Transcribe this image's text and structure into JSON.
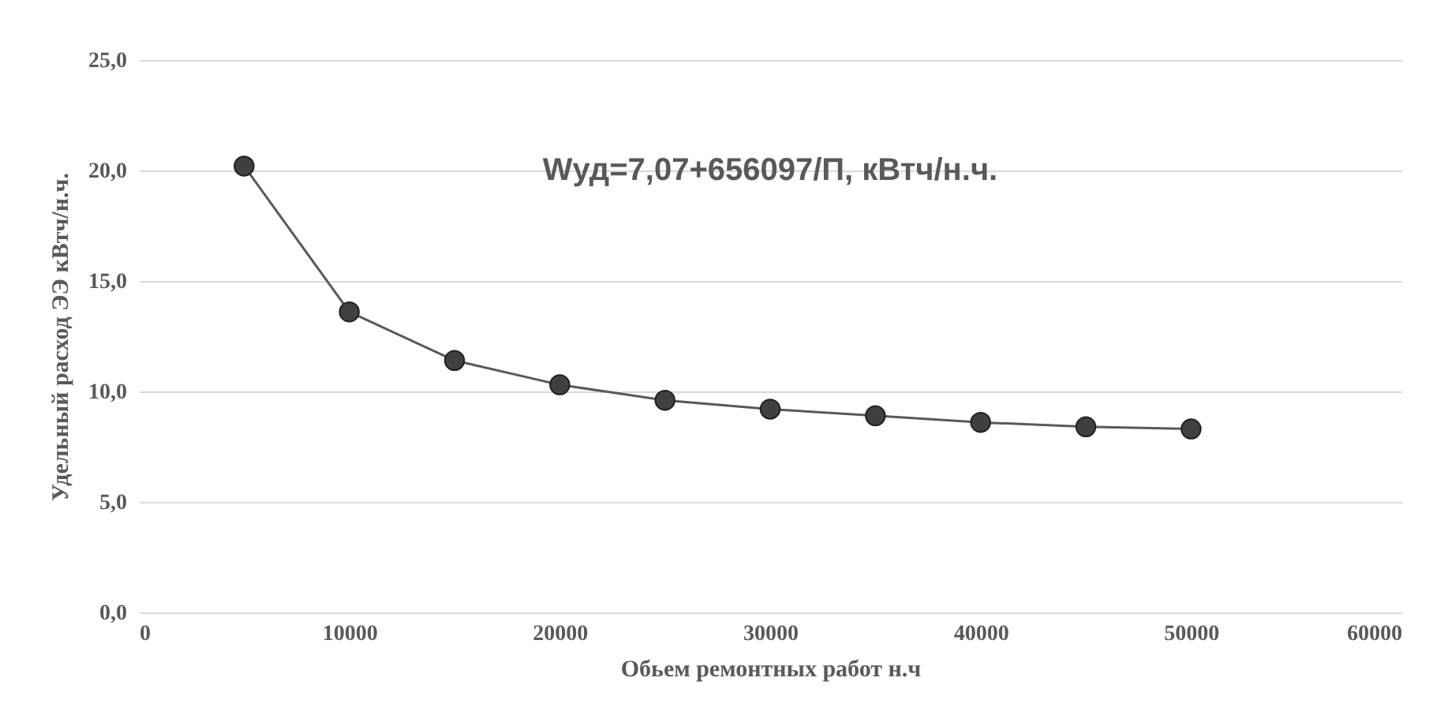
{
  "chart_data": {
    "type": "line",
    "xlabel": "Обьем ремонтных работ н.ч",
    "ylabel": "Удельный расход ЭЭ кВтч/н.ч.",
    "annotations": [
      "Wуд=7,07+656097/П, кВтч/н.ч."
    ],
    "x": [
      5000,
      10000,
      15000,
      20000,
      25000,
      30000,
      35000,
      40000,
      45000,
      50000
    ],
    "series": [
      {
        "color": "#404040",
        "values": [
          20.2,
          13.6,
          11.4,
          10.3,
          9.6,
          9.2,
          8.9,
          8.6,
          8.4,
          8.3
        ]
      }
    ],
    "xlim": [
      0,
      60000
    ],
    "xticks": [
      0,
      10000,
      20000,
      30000,
      40000,
      50000,
      60000
    ],
    "ylim": [
      0,
      25
    ],
    "yticks": [
      {
        "value": 0,
        "label": "0,0"
      },
      {
        "value": 5,
        "label": "5,0"
      },
      {
        "value": 10,
        "label": "10,0"
      },
      {
        "value": 15,
        "label": "15,0"
      },
      {
        "value": 20,
        "label": "20,0"
      },
      {
        "value": 25,
        "label": "25,0"
      }
    ],
    "grid": "y",
    "marker": "circle",
    "line_style": "solid"
  }
}
